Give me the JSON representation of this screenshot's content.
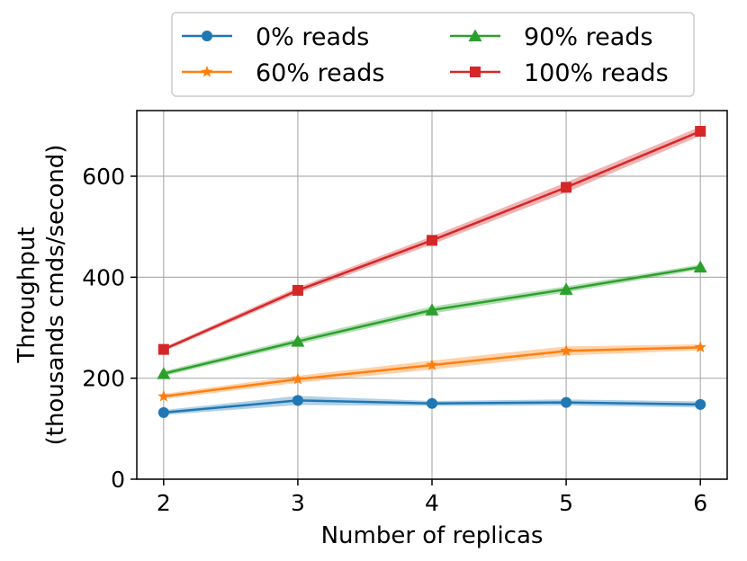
{
  "chart_data": {
    "type": "line",
    "xlabel": "Number of replicas",
    "ylabel_lines": [
      "Throughput",
      "(thousands cmds/second)"
    ],
    "x": [
      2,
      3,
      4,
      5,
      6
    ],
    "xlim": [
      1.8,
      6.2
    ],
    "ylim": [
      0,
      730
    ],
    "xticks": [
      2,
      3,
      4,
      5,
      6
    ],
    "yticks": [
      0,
      200,
      400,
      600
    ],
    "grid": true,
    "legend_position": "top, outside plot area, two columns",
    "series": [
      {
        "name": "0% reads",
        "color": "#1f77b4",
        "marker": "circle",
        "values": [
          132,
          156,
          150,
          152,
          148
        ],
        "band": [
          5,
          9,
          5,
          6,
          6
        ]
      },
      {
        "name": "60% reads",
        "color": "#ff7f0e",
        "marker": "star",
        "values": [
          164,
          198,
          226,
          254,
          261
        ],
        "band": [
          5,
          7,
          9,
          9,
          6
        ]
      },
      {
        "name": "90% reads",
        "color": "#2ca02c",
        "marker": "triangle",
        "values": [
          209,
          273,
          335,
          376,
          420
        ],
        "band": [
          5,
          6,
          7,
          6,
          5
        ]
      },
      {
        "name": "100% reads",
        "color": "#d62728",
        "marker": "square",
        "values": [
          257,
          374,
          473,
          578,
          689
        ],
        "band": [
          4,
          6,
          8,
          10,
          9
        ]
      }
    ]
  }
}
